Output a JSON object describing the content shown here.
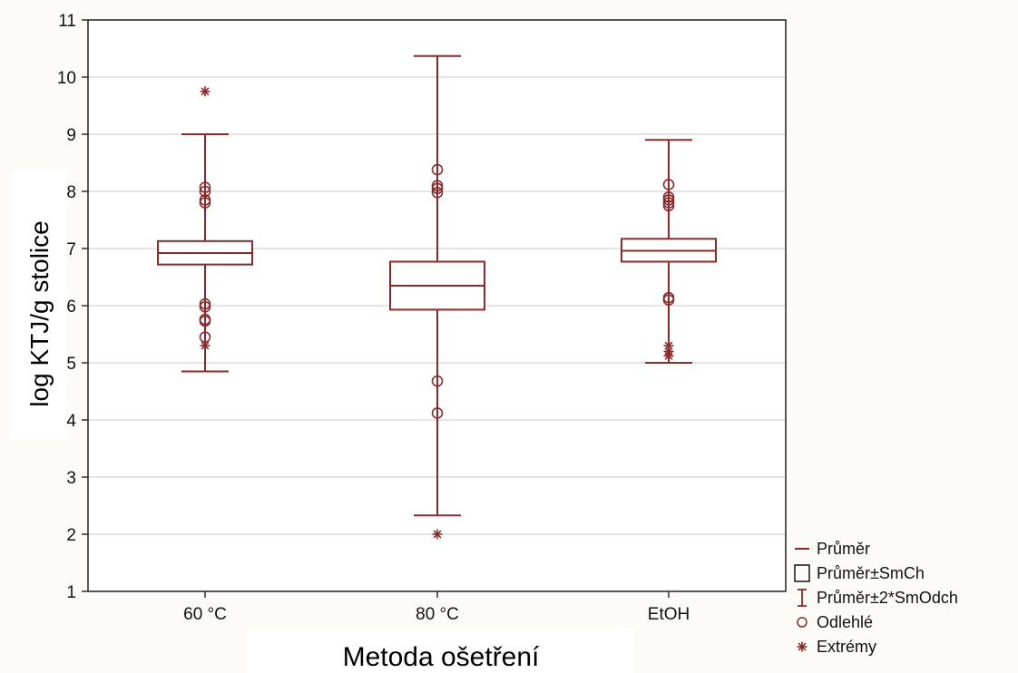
{
  "chart_data": {
    "type": "box",
    "xlabel": "Metoda ošetření",
    "ylabel": "log KTJ/g stolice",
    "ylim": [
      1,
      11
    ],
    "yticks": [
      1,
      2,
      3,
      4,
      5,
      6,
      7,
      8,
      9,
      10,
      11
    ],
    "grid": true,
    "legend_position": "bottom-right",
    "color": "#8b2a2a",
    "categories": [
      "60 °C",
      "80 °C",
      "EtOH"
    ],
    "boxes": [
      {
        "category": "60 °C",
        "mean": 6.92,
        "box_low": 6.72,
        "box_high": 7.13,
        "whisker_low": 4.85,
        "whisker_high": 9.0,
        "outliers": [
          8.07,
          8.0,
          7.85,
          7.8,
          6.03,
          5.98,
          5.76,
          5.73,
          5.45
        ],
        "extremes": [
          9.75,
          5.3
        ]
      },
      {
        "category": "80 °C",
        "mean": 6.35,
        "box_low": 5.93,
        "box_high": 6.77,
        "whisker_low": 2.33,
        "whisker_high": 10.37,
        "outliers": [
          8.38,
          8.1,
          8.05,
          7.98,
          4.68,
          4.12
        ],
        "extremes": [
          2.0
        ]
      },
      {
        "category": "EtOH",
        "mean": 6.96,
        "box_low": 6.77,
        "box_high": 7.17,
        "whisker_low": 5.0,
        "whisker_high": 8.9,
        "outliers": [
          8.12,
          7.9,
          7.85,
          7.8,
          7.75,
          6.14,
          6.1
        ],
        "extremes": [
          5.3,
          5.2,
          5.12
        ]
      }
    ],
    "legend": [
      {
        "symbol": "line",
        "label": "Průměr"
      },
      {
        "symbol": "box",
        "label": "Průměr±SmCh"
      },
      {
        "symbol": "whisker",
        "label": "Průměr±2*SmOdch"
      },
      {
        "symbol": "circle",
        "label": "Odlehlé"
      },
      {
        "symbol": "star",
        "label": "Extrémy"
      }
    ]
  }
}
